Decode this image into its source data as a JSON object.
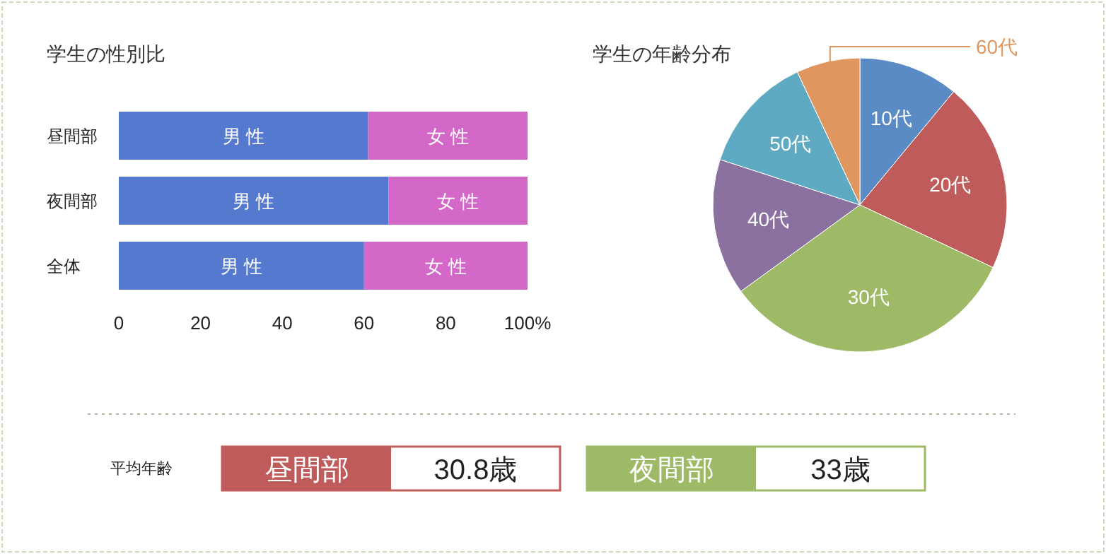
{
  "chart_data": [
    {
      "type": "bar",
      "orientation": "horizontal",
      "stacked": true,
      "title": "学生の性別比",
      "categories": [
        "昼間部",
        "夜間部",
        "全体"
      ],
      "series": [
        {
          "name": "男 性",
          "color": "#5479cf",
          "values": [
            61,
            66,
            60
          ]
        },
        {
          "name": "女 性",
          "color": "#d468c9",
          "values": [
            39,
            34,
            40
          ]
        }
      ],
      "xlim": [
        0,
        100
      ],
      "xticks": [
        0,
        20,
        40,
        60,
        80,
        {
          "value": 100,
          "label": "100%"
        }
      ],
      "grid": false
    },
    {
      "type": "pie",
      "title": "学生の年齢分布",
      "categories": [
        "10代",
        "20代",
        "30代",
        "40代",
        "50代",
        "60代"
      ],
      "values": [
        11,
        21,
        33,
        15,
        13,
        7
      ],
      "colors": [
        "#5a8bc4",
        "#c05b5b",
        "#9fba66",
        "#8a71a0",
        "#5eaac2",
        "#e0975f"
      ]
    },
    {
      "type": "other",
      "title": "平均年齢",
      "categories": [
        "昼間部",
        "夜間部"
      ],
      "value_labels": [
        "30.8歳",
        "33歳"
      ],
      "colors": [
        "#c05b5b",
        "#9fba66"
      ]
    }
  ]
}
